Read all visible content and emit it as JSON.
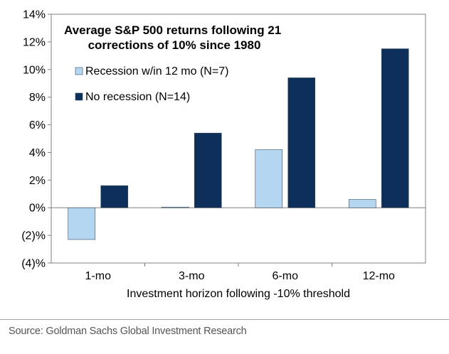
{
  "chart_data": {
    "type": "bar",
    "title_lines": [
      "Average S&P 500 returns following 21",
      "corrections of 10% since 1980"
    ],
    "xlabel": "Investment horizon following -10% threshold",
    "ylabel": "",
    "categories": [
      "1-mo",
      "3-mo",
      "6-mo",
      "12-mo"
    ],
    "series": [
      {
        "name": "Recession w/in 12 mo (N=7)",
        "values": [
          -2.3,
          0.05,
          4.2,
          0.6
        ]
      },
      {
        "name": "No recession (N=14)",
        "values": [
          1.6,
          5.4,
          9.4,
          11.5
        ]
      }
    ],
    "ylim": [
      -4,
      14
    ],
    "yticks": [
      14,
      12,
      10,
      8,
      6,
      4,
      2,
      0,
      -2,
      -4
    ],
    "ytick_labels": [
      "14%",
      "12%",
      "10%",
      "8%",
      "6%",
      "4%",
      "2%",
      "0%",
      "(2)%",
      "(4)%"
    ],
    "legend_position": "upper-left",
    "grid": false,
    "colors": {
      "series": [
        "#b4d6f0",
        "#0d2f5a"
      ],
      "axis": "#808080",
      "text": "#000000"
    }
  },
  "source": "Source: Goldman Sachs Global Investment Research"
}
